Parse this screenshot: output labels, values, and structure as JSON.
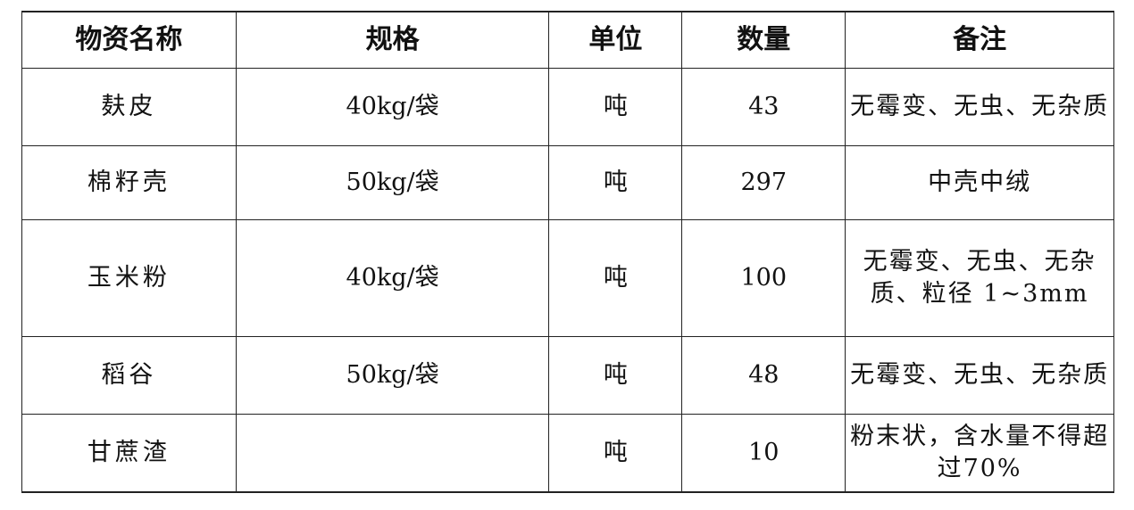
{
  "headers": [
    "物资名称",
    "规格",
    "单位",
    "数量",
    "备注"
  ],
  "rows": [
    [
      "麸皮",
      "40kg/袋",
      "吨",
      "43",
      "无霉变、无虫、无杂质"
    ],
    [
      "棉籽壳",
      "50kg/袋",
      "吨",
      "297",
      "中壳中绒"
    ],
    [
      "玉米粉",
      "40kg/袋",
      "吨",
      "100",
      "无霉变、无虫、无杂质、粒径 1~3mm"
    ],
    [
      "稻谷",
      "50kg/袋",
      "吨",
      "48",
      "无霉变、无虫、无杂质"
    ],
    [
      "甘蔗渣",
      "",
      "吨",
      "10",
      "粉末状，含水量不得超过70%"
    ]
  ]
}
